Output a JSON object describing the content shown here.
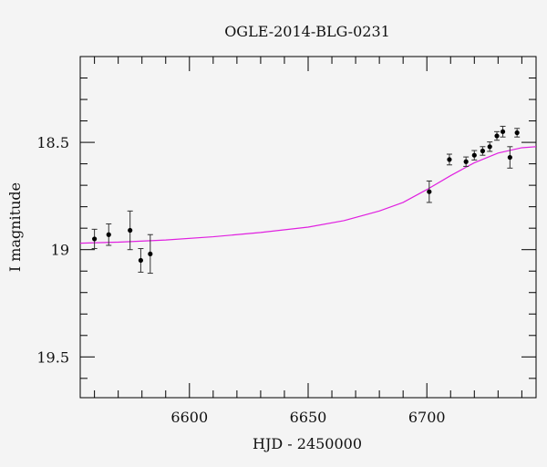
{
  "chart_data": {
    "type": "scatter",
    "title": "OGLE-2014-BLG-0231",
    "xlabel": "HJD - 2450000",
    "ylabel": "I magnitude",
    "xlim": [
      6554,
      6746
    ],
    "ylim": [
      19.69,
      18.1
    ],
    "y_inverted": true,
    "x_major_ticks": [
      6600,
      6650,
      6700
    ],
    "x_tick_labels": [
      "6600",
      "6650",
      "6700"
    ],
    "y_major_ticks": [
      18.5,
      19,
      19.5
    ],
    "y_tick_labels": [
      "18.5",
      "19",
      "19.5"
    ],
    "grid": false,
    "legend": "none",
    "marker_color": "#000000",
    "model_color": "#e020e0",
    "series": [
      {
        "type": "errorbar",
        "points": [
          {
            "x": 6560.0,
            "y": 18.95,
            "err": 0.045
          },
          {
            "x": 6566.0,
            "y": 18.93,
            "err": 0.05
          },
          {
            "x": 6575.0,
            "y": 18.91,
            "err": 0.09
          },
          {
            "x": 6579.5,
            "y": 19.05,
            "err": 0.055
          },
          {
            "x": 6583.5,
            "y": 19.02,
            "err": 0.09
          },
          {
            "x": 6701.0,
            "y": 18.73,
            "err": 0.05
          },
          {
            "x": 6709.5,
            "y": 18.58,
            "err": 0.025
          },
          {
            "x": 6716.5,
            "y": 18.59,
            "err": 0.022
          },
          {
            "x": 6720.0,
            "y": 18.56,
            "err": 0.022
          },
          {
            "x": 6723.5,
            "y": 18.54,
            "err": 0.02
          },
          {
            "x": 6726.5,
            "y": 18.52,
            "err": 0.022
          },
          {
            "x": 6729.5,
            "y": 18.47,
            "err": 0.02
          },
          {
            "x": 6732.0,
            "y": 18.45,
            "err": 0.025
          },
          {
            "x": 6735.0,
            "y": 18.57,
            "err": 0.05
          },
          {
            "x": 6738.0,
            "y": 18.455,
            "err": 0.02
          }
        ]
      },
      {
        "type": "line",
        "x": [
          6554,
          6570,
          6590,
          6610,
          6630,
          6650,
          6665,
          6680,
          6690,
          6700,
          6710,
          6720,
          6730,
          6740,
          6746
        ],
        "y": [
          18.97,
          18.965,
          18.955,
          18.94,
          18.92,
          18.895,
          18.865,
          18.82,
          18.78,
          18.72,
          18.655,
          18.595,
          18.55,
          18.525,
          18.52
        ]
      }
    ]
  }
}
